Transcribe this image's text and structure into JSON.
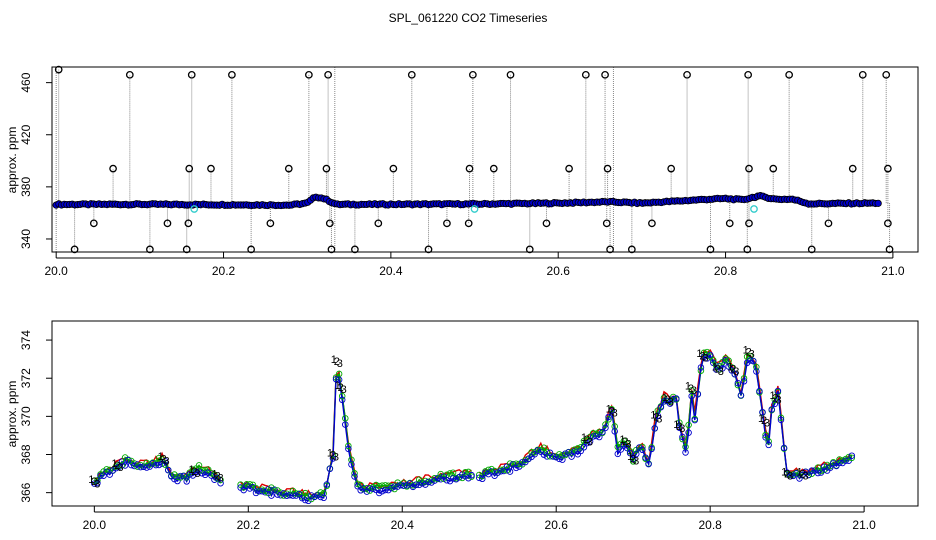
{
  "figure": {
    "title": "SPL_061220  CO2 Timeseries"
  },
  "colors": {
    "points": "#0000cc",
    "outline": "#000000",
    "spike": "#888888",
    "cyan": "#33cccc",
    "green": "#00aa00",
    "red": "#dd0000",
    "blue": "#0000cc",
    "orange": "#cc6600"
  },
  "chart_data": [
    {
      "type": "scatter",
      "title": "",
      "ylabel": "approx. ppm",
      "xlabel": "",
      "xlim": [
        19.995,
        21.03
      ],
      "ylim": [
        330,
        472
      ],
      "xticks": [
        "20.0",
        "20.2",
        "20.4",
        "20.6",
        "20.8",
        "21.0"
      ],
      "yticks": [
        "340",
        "380",
        "420",
        "460"
      ],
      "grid": false,
      "baseline": [
        [
          20.0,
          366.5
        ],
        [
          20.1,
          366.6
        ],
        [
          20.2,
          366.3
        ],
        [
          20.28,
          366.0
        ],
        [
          20.3,
          367.5
        ],
        [
          20.31,
          372.5
        ],
        [
          20.32,
          371.0
        ],
        [
          20.335,
          366.5
        ],
        [
          20.4,
          366.6
        ],
        [
          20.5,
          366.8
        ],
        [
          20.6,
          367.5
        ],
        [
          20.66,
          368.5
        ],
        [
          20.7,
          367.5
        ],
        [
          20.74,
          369.0
        ],
        [
          20.78,
          370.5
        ],
        [
          20.8,
          371.0
        ],
        [
          20.82,
          370.0
        ],
        [
          20.84,
          373.0
        ],
        [
          20.86,
          370.5
        ],
        [
          20.88,
          370.5
        ],
        [
          20.9,
          367.0
        ],
        [
          20.98,
          367.5
        ]
      ],
      "spikes_high": [
        [
          20.003,
          470
        ],
        [
          20.088,
          466
        ],
        [
          20.162,
          466
        ],
        [
          20.21,
          466
        ],
        [
          20.302,
          466
        ],
        [
          20.325,
          466
        ],
        [
          20.425,
          466
        ],
        [
          20.498,
          466
        ],
        [
          20.543,
          466
        ],
        [
          20.633,
          466
        ],
        [
          20.656,
          466
        ],
        [
          20.754,
          466
        ],
        [
          20.827,
          466
        ],
        [
          20.876,
          466
        ],
        [
          20.964,
          466
        ],
        [
          20.992,
          466
        ]
      ],
      "spikes_mid": [
        [
          20.068,
          394
        ],
        [
          20.159,
          394
        ],
        [
          20.185,
          394
        ],
        [
          20.278,
          394
        ],
        [
          20.323,
          394
        ],
        [
          20.403,
          394
        ],
        [
          20.494,
          394
        ],
        [
          20.523,
          394
        ],
        [
          20.613,
          394
        ],
        [
          20.659,
          394
        ],
        [
          20.735,
          394
        ],
        [
          20.828,
          394
        ],
        [
          20.857,
          394
        ],
        [
          20.952,
          394
        ],
        [
          20.994,
          394
        ]
      ],
      "spikes_low1": [
        [
          20.045,
          352
        ],
        [
          20.133,
          352
        ],
        [
          20.158,
          352
        ],
        [
          20.256,
          352
        ],
        [
          20.327,
          352
        ],
        [
          20.385,
          352
        ],
        [
          20.467,
          352
        ],
        [
          20.493,
          352
        ],
        [
          20.586,
          352
        ],
        [
          20.658,
          352
        ],
        [
          20.712,
          352
        ],
        [
          20.805,
          352
        ],
        [
          20.828,
          352
        ],
        [
          20.923,
          352
        ],
        [
          20.994,
          352
        ]
      ],
      "spikes_low2": [
        [
          20.022,
          332
        ],
        [
          20.112,
          332
        ],
        [
          20.156,
          332
        ],
        [
          20.233,
          332
        ],
        [
          20.329,
          332
        ],
        [
          20.357,
          332
        ],
        [
          20.445,
          332
        ],
        [
          20.566,
          332
        ],
        [
          20.662,
          332
        ],
        [
          20.688,
          332
        ],
        [
          20.782,
          332
        ],
        [
          20.826,
          332
        ],
        [
          20.903,
          332
        ],
        [
          20.996,
          332
        ]
      ],
      "cyan_points": [
        [
          20.165,
          363
        ],
        [
          20.5,
          363
        ],
        [
          20.834,
          363
        ]
      ],
      "gap_lines_x": [
        20.0,
        20.333,
        20.666
      ]
    },
    {
      "type": "line",
      "title": "",
      "ylabel": "approx. ppm",
      "xlabel": "",
      "xlim": [
        19.945,
        21.07
      ],
      "ylim": [
        365.3,
        375.0
      ],
      "xticks": [
        "20.0",
        "20.2",
        "20.4",
        "20.6",
        "20.8",
        "21.0"
      ],
      "yticks": [
        "366",
        "368",
        "370",
        "372",
        "374"
      ],
      "grid": false,
      "series_markers": [
        "1",
        "2",
        "3"
      ],
      "anchors": [
        [
          20.0,
          366.6
        ],
        [
          20.02,
          367.2
        ],
        [
          20.04,
          367.7
        ],
        [
          20.07,
          367.4
        ],
        [
          20.09,
          367.8
        ],
        [
          20.1,
          366.9
        ],
        [
          20.12,
          366.8
        ],
        [
          20.135,
          367.3
        ],
        [
          20.16,
          366.9
        ],
        [
          20.167,
          366.6
        ],
        [
          20.2,
          366.3
        ],
        [
          20.25,
          366.0
        ],
        [
          20.28,
          365.8
        ],
        [
          20.3,
          366.0
        ],
        [
          20.31,
          368.0
        ],
        [
          20.315,
          372.9
        ],
        [
          20.322,
          371.0
        ],
        [
          20.33,
          368.5
        ],
        [
          20.34,
          366.5
        ],
        [
          20.36,
          366.2
        ],
        [
          20.4,
          366.4
        ],
        [
          20.45,
          366.8
        ],
        [
          20.49,
          367.0
        ],
        [
          20.5,
          366.9
        ],
        [
          20.55,
          367.5
        ],
        [
          20.58,
          368.3
        ],
        [
          20.6,
          367.9
        ],
        [
          20.63,
          368.2
        ],
        [
          20.64,
          368.8
        ],
        [
          20.66,
          369.3
        ],
        [
          20.672,
          370.3
        ],
        [
          20.68,
          368.3
        ],
        [
          20.69,
          368.7
        ],
        [
          20.7,
          367.8
        ],
        [
          20.71,
          368.5
        ],
        [
          20.72,
          367.5
        ],
        [
          20.73,
          370.0
        ],
        [
          20.74,
          371.0
        ],
        [
          20.75,
          370.8
        ],
        [
          20.755,
          371.3
        ],
        [
          20.76,
          369.5
        ],
        [
          20.77,
          368.0
        ],
        [
          20.775,
          371.5
        ],
        [
          20.78,
          370.0
        ],
        [
          20.79,
          373.2
        ],
        [
          20.8,
          373.3
        ],
        [
          20.81,
          372.5
        ],
        [
          20.82,
          373.0
        ],
        [
          20.83,
          372.5
        ],
        [
          20.84,
          371.2
        ],
        [
          20.85,
          373.4
        ],
        [
          20.86,
          372.5
        ],
        [
          20.87,
          369.8
        ],
        [
          20.875,
          368.2
        ],
        [
          20.88,
          370.5
        ],
        [
          20.888,
          371.3
        ],
        [
          20.9,
          367.0
        ],
        [
          20.92,
          367.0
        ],
        [
          20.96,
          367.5
        ],
        [
          20.985,
          367.9
        ]
      ],
      "segments": [
        [
          20.0,
          20.167
        ],
        [
          20.19,
          20.49
        ],
        [
          20.5,
          20.985
        ]
      ]
    }
  ]
}
